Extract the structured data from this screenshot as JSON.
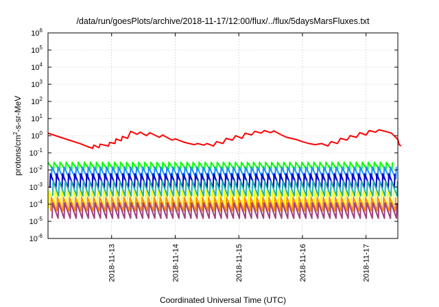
{
  "chart_data": {
    "type": "line",
    "title": "/data/run/goesPlots/archive/2018-11-17/12:00/flux/../flux/5daysMarsFluxes.txt",
    "xlabel": "Coordinated Universal Time (UTC)",
    "ylabel": "protons/cm2-s-sr-MeV",
    "ylabel_main": "protons/cm",
    "ylabel_sup": "2",
    "ylabel_rest": "-s-sr-MeV",
    "yscale": "log",
    "ylim": [
      1e-06,
      1000000
    ],
    "xlim": [
      "2018-11-12 00:00",
      "2018-11-17 12:00"
    ],
    "grid": true,
    "x_ticks": [
      "2018-11-13",
      "2018-11-14",
      "2018-11-15",
      "2018-11-16",
      "2018-11-17"
    ],
    "y_ticks": [
      {
        "exp": -6,
        "label_base": "10",
        "label_exp": "-6"
      },
      {
        "exp": -5,
        "label_base": "10",
        "label_exp": "-5"
      },
      {
        "exp": -4,
        "label_base": "10",
        "label_exp": "-4"
      },
      {
        "exp": -3,
        "label_base": "10",
        "label_exp": "-3"
      },
      {
        "exp": -2,
        "label_base": "10",
        "label_exp": "-2"
      },
      {
        "exp": -1,
        "label_base": "10",
        "label_exp": "-1"
      },
      {
        "exp": 0,
        "label_base": "10",
        "label_exp": "0"
      },
      {
        "exp": 1,
        "label_base": "10",
        "label_exp": "1"
      },
      {
        "exp": 2,
        "label_base": "10",
        "label_exp": "2"
      },
      {
        "exp": 3,
        "label_base": "10",
        "label_exp": "3"
      },
      {
        "exp": 4,
        "label_base": "10",
        "label_exp": "4"
      },
      {
        "exp": 5,
        "label_base": "10",
        "label_exp": "5"
      },
      {
        "exp": 6,
        "label_base": "10",
        "label_exp": "6"
      }
    ],
    "series": [
      {
        "color": "#ff0000",
        "kind": "smooth",
        "points": [
          [
            0.0,
            1.4
          ],
          [
            0.12,
            1.0
          ],
          [
            0.3,
            0.6
          ],
          [
            0.5,
            0.35
          ],
          [
            0.6,
            0.25
          ],
          [
            0.7,
            0.18
          ],
          [
            0.72,
            0.28
          ],
          [
            0.8,
            0.2
          ],
          [
            0.82,
            0.32
          ],
          [
            0.95,
            0.25
          ],
          [
            0.97,
            0.4
          ],
          [
            1.05,
            0.35
          ],
          [
            1.07,
            0.65
          ],
          [
            1.15,
            0.5
          ],
          [
            1.17,
            0.9
          ],
          [
            1.25,
            0.7
          ],
          [
            1.3,
            1.8
          ],
          [
            1.4,
            1.2
          ],
          [
            1.45,
            1.6
          ],
          [
            1.55,
            1.0
          ],
          [
            1.6,
            1.5
          ],
          [
            1.75,
            0.8
          ],
          [
            1.8,
            1.1
          ],
          [
            1.95,
            0.55
          ],
          [
            2.0,
            0.65
          ],
          [
            2.15,
            0.4
          ],
          [
            2.3,
            0.3
          ],
          [
            2.35,
            0.35
          ],
          [
            2.45,
            0.28
          ],
          [
            2.5,
            0.35
          ],
          [
            2.6,
            0.25
          ],
          [
            2.65,
            0.45
          ],
          [
            2.75,
            0.35
          ],
          [
            2.8,
            0.7
          ],
          [
            2.9,
            0.55
          ],
          [
            2.95,
            1.0
          ],
          [
            3.05,
            0.7
          ],
          [
            3.1,
            1.4
          ],
          [
            3.2,
            1.1
          ],
          [
            3.25,
            1.8
          ],
          [
            3.35,
            1.4
          ],
          [
            3.4,
            2.0
          ],
          [
            3.5,
            1.5
          ],
          [
            3.55,
            1.9
          ],
          [
            3.65,
            1.2
          ],
          [
            3.75,
            0.8
          ],
          [
            3.9,
            0.6
          ],
          [
            4.0,
            0.45
          ],
          [
            4.1,
            0.35
          ],
          [
            4.2,
            0.3
          ],
          [
            4.3,
            0.35
          ],
          [
            4.4,
            0.25
          ],
          [
            4.45,
            0.45
          ],
          [
            4.55,
            0.35
          ],
          [
            4.6,
            0.7
          ],
          [
            4.7,
            0.55
          ],
          [
            4.75,
            1.0
          ],
          [
            4.85,
            0.8
          ],
          [
            4.9,
            1.5
          ],
          [
            5.0,
            1.1
          ],
          [
            5.05,
            2.0
          ],
          [
            5.15,
            1.6
          ],
          [
            5.2,
            2.2
          ],
          [
            5.3,
            1.8
          ],
          [
            5.4,
            1.4
          ],
          [
            5.5,
            0.6
          ],
          [
            5.52,
            0.3
          ],
          [
            5.55,
            0.25
          ]
        ]
      },
      {
        "color": "#00ff00",
        "kind": "sawtooth",
        "low": 0.009,
        "high": 0.028,
        "phase": 0.0
      },
      {
        "color": "#1e90ff",
        "kind": "sawtooth",
        "low": 0.003,
        "high": 0.015,
        "phase": 0.35
      },
      {
        "color": "#0000cd",
        "kind": "sawtooth",
        "low": 0.0009,
        "high": 0.006,
        "phase": 0.6
      },
      {
        "color": "#20b2aa",
        "kind": "sawtooth",
        "low": 0.0003,
        "high": 0.0022,
        "phase": 0.15
      },
      {
        "color": "#ffff00",
        "kind": "sawtooth",
        "low": 6e-05,
        "high": 0.0006,
        "phase": 0.8
      },
      {
        "color": "#ff8c00",
        "kind": "sawtooth",
        "low": 4e-05,
        "high": 0.00025,
        "phase": 0.45
      },
      {
        "color": "#a0407f",
        "kind": "sawtooth",
        "low": 1.5e-05,
        "high": 0.00012,
        "phase": 0.25
      }
    ],
    "sawtooth_period_days": 0.095
  }
}
